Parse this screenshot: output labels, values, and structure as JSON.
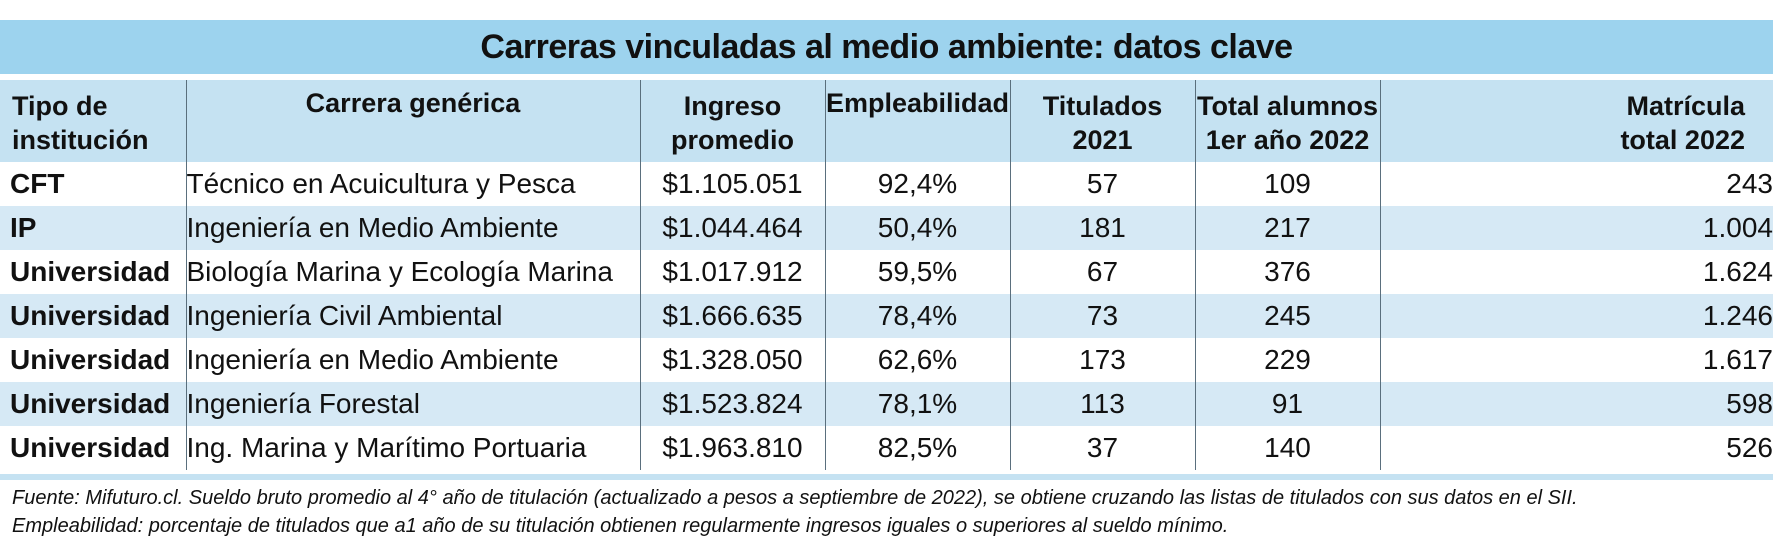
{
  "title": "Carreras vinculadas al medio ambiente: datos clave",
  "columns": {
    "tipo": [
      "Tipo de",
      "institución"
    ],
    "carrera": [
      "Carrera genérica"
    ],
    "ingreso": [
      "Ingreso",
      "promedio"
    ],
    "empleabilidad": [
      "Empleabilidad"
    ],
    "titulados": [
      "Titulados",
      "2021"
    ],
    "alumnos": [
      "Total alumnos",
      "1er año 2022"
    ],
    "matricula": [
      "Matrícula",
      "total 2022"
    ]
  },
  "rows": [
    {
      "tipo": "CFT",
      "carrera": "Técnico en Acuicultura y Pesca",
      "ingreso": "$1.105.051",
      "empleabilidad": "92,4%",
      "titulados": "57",
      "alumnos": "109",
      "matricula": "243"
    },
    {
      "tipo": "IP",
      "carrera": "Ingeniería en Medio Ambiente",
      "ingreso": "$1.044.464",
      "empleabilidad": "50,4%",
      "titulados": "181",
      "alumnos": "217",
      "matricula": "1.004"
    },
    {
      "tipo": "Universidad",
      "carrera": "Biología Marina y Ecología Marina",
      "ingreso": "$1.017.912",
      "empleabilidad": "59,5%",
      "titulados": "67",
      "alumnos": "376",
      "matricula": "1.624"
    },
    {
      "tipo": "Universidad",
      "carrera": "Ingeniería Civil Ambiental",
      "ingreso": "$1.666.635",
      "empleabilidad": "78,4%",
      "titulados": "73",
      "alumnos": "245",
      "matricula": "1.246"
    },
    {
      "tipo": "Universidad",
      "carrera": "Ingeniería en Medio Ambiente",
      "ingreso": "$1.328.050",
      "empleabilidad": "62,6%",
      "titulados": "173",
      "alumnos": "229",
      "matricula": "1.617"
    },
    {
      "tipo": "Universidad",
      "carrera": "Ingeniería Forestal",
      "ingreso": "$1.523.824",
      "empleabilidad": "78,1%",
      "titulados": "113",
      "alumnos": "91",
      "matricula": "598"
    },
    {
      "tipo": "Universidad",
      "carrera": "Ing. Marina y Marítimo Portuaria",
      "ingreso": "$1.963.810",
      "empleabilidad": "82,5%",
      "titulados": "37",
      "alumnos": "140",
      "matricula": "526"
    }
  ],
  "notes": [
    "Fuente: Mifuturo.cl. Sueldo bruto promedio al 4° año de titulación (actualizado a pesos a septiembre de 2022), se obtiene cruzando las listas de titulados con sus datos en el SII.",
    "Empleabilidad: porcentaje de titulados que a1 año de su titulación obtienen regularmente ingresos iguales o superiores al sueldo mínimo."
  ],
  "colors": {
    "title_background": "#9dd3ee",
    "header_background": "#c5e2f2",
    "stripe_background": "#d6e9f5"
  }
}
